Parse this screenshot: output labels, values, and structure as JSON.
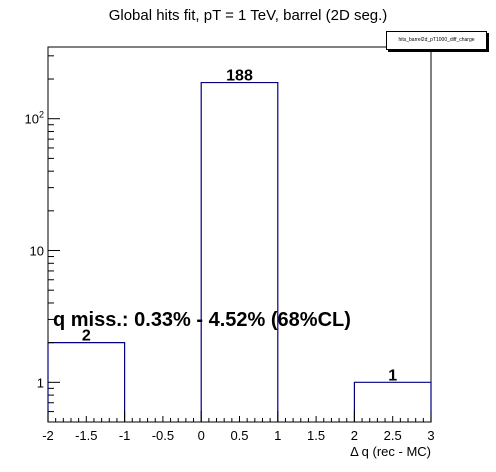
{
  "chart_data": {
    "type": "bar",
    "title": "Global hits fit, pT = 1 TeV, barrel (2D seg.)",
    "legend": {
      "entries": [
        "hits_barrel2d_pT1000_diff_charge"
      ],
      "position": "top-right"
    },
    "xlabel": "Δ q (rec - MC)",
    "ylabel": "",
    "y_scale": "log",
    "xlim": [
      -2,
      3
    ],
    "ylim": [
      0.5,
      350
    ],
    "x_ticks": [
      "-2",
      "-1.5",
      "-1",
      "-0.5",
      "0",
      "0.5",
      "1",
      "1.5",
      "2",
      "2.5",
      "3"
    ],
    "y_ticks": [
      {
        "value": 1,
        "label": "1"
      },
      {
        "value": 10,
        "label": "10"
      },
      {
        "value": 100,
        "label": "10^2"
      }
    ],
    "bins": [
      {
        "low": -2,
        "high": -1,
        "value": 2,
        "label": "2"
      },
      {
        "low": -1,
        "high": 0,
        "value": 0,
        "label": ""
      },
      {
        "low": 0,
        "high": 1,
        "value": 188,
        "label": "188"
      },
      {
        "low": 1,
        "high": 2,
        "value": 0,
        "label": ""
      },
      {
        "low": 2,
        "high": 3,
        "value": 1,
        "label": "1"
      }
    ],
    "annotation": "q miss.: 0.33% - 4.52% (68%CL)",
    "grid": false,
    "colors": {
      "bar_line": "#000080",
      "axis": "#000000"
    }
  }
}
